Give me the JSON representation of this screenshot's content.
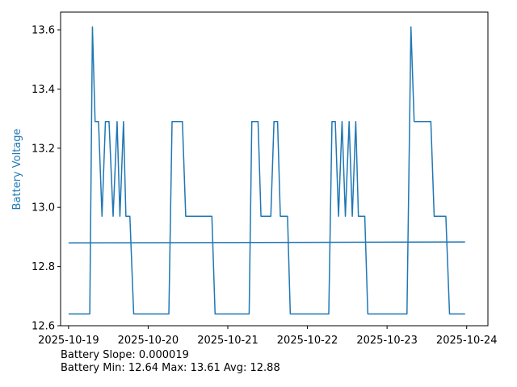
{
  "chart_data": {
    "type": "line",
    "ylabel": "Battery Voltage",
    "ylim": [
      12.6,
      13.66
    ],
    "yticks": [
      12.6,
      12.8,
      13.0,
      13.2,
      13.4,
      13.6
    ],
    "ytick_labels": [
      "12.6",
      "12.8",
      "13.0",
      "13.2",
      "13.4",
      "13.6"
    ],
    "xlim": [
      "2025-10-18 21:36",
      "2025-10-24 06:24"
    ],
    "xticks": [
      "2025-10-19 00:00",
      "2025-10-20 00:00",
      "2025-10-21 00:00",
      "2025-10-22 00:00",
      "2025-10-23 00:00",
      "2025-10-24 00:00"
    ],
    "xtick_labels": [
      "2025-10-19",
      "2025-10-20",
      "2025-10-21",
      "2025-10-22",
      "2025-10-23",
      "2025-10-24"
    ],
    "grid": false,
    "series": [
      {
        "color": "#1f77b4",
        "points": [
          [
            "2025-10-19 00:00",
            12.64
          ],
          [
            "2025-10-19 06:24",
            12.64
          ],
          [
            "2025-10-19 07:12",
            13.61
          ],
          [
            "2025-10-19 08:00",
            13.29
          ],
          [
            "2025-10-19 09:02",
            13.29
          ],
          [
            "2025-10-19 10:05",
            12.97
          ],
          [
            "2025-10-19 11:07",
            13.29
          ],
          [
            "2025-10-19 12:12",
            13.29
          ],
          [
            "2025-10-19 13:26",
            12.97
          ],
          [
            "2025-10-19 14:38",
            13.29
          ],
          [
            "2025-10-19 15:29",
            12.97
          ],
          [
            "2025-10-19 16:34",
            13.29
          ],
          [
            "2025-10-19 17:17",
            12.97
          ],
          [
            "2025-10-19 18:29",
            12.97
          ],
          [
            "2025-10-19 19:38",
            12.64
          ],
          [
            "2025-10-20 06:14",
            12.64
          ],
          [
            "2025-10-20 07:12",
            13.29
          ],
          [
            "2025-10-20 10:19",
            13.29
          ],
          [
            "2025-10-20 11:19",
            12.97
          ],
          [
            "2025-10-20 19:12",
            12.97
          ],
          [
            "2025-10-20 20:10",
            12.64
          ],
          [
            "2025-10-21 06:26",
            12.64
          ],
          [
            "2025-10-21 07:14",
            13.29
          ],
          [
            "2025-10-21 09:07",
            13.29
          ],
          [
            "2025-10-21 10:00",
            12.97
          ],
          [
            "2025-10-21 12:58",
            12.97
          ],
          [
            "2025-10-21 13:55",
            13.29
          ],
          [
            "2025-10-21 15:00",
            13.29
          ],
          [
            "2025-10-21 15:50",
            12.97
          ],
          [
            "2025-10-21 18:00",
            12.97
          ],
          [
            "2025-10-21 18:50",
            12.64
          ],
          [
            "2025-10-22 06:26",
            12.64
          ],
          [
            "2025-10-22 07:24",
            13.29
          ],
          [
            "2025-10-22 08:24",
            13.29
          ],
          [
            "2025-10-22 09:22",
            12.97
          ],
          [
            "2025-10-22 10:26",
            13.29
          ],
          [
            "2025-10-22 11:26",
            12.97
          ],
          [
            "2025-10-22 12:34",
            13.29
          ],
          [
            "2025-10-22 13:31",
            12.97
          ],
          [
            "2025-10-22 14:34",
            13.29
          ],
          [
            "2025-10-22 15:22",
            12.97
          ],
          [
            "2025-10-22 17:17",
            12.97
          ],
          [
            "2025-10-22 18:12",
            12.64
          ],
          [
            "2025-10-23 06:00",
            12.64
          ],
          [
            "2025-10-23 07:12",
            13.61
          ],
          [
            "2025-10-23 08:10",
            13.29
          ],
          [
            "2025-10-23 13:12",
            13.29
          ],
          [
            "2025-10-23 14:12",
            12.97
          ],
          [
            "2025-10-23 17:43",
            12.97
          ],
          [
            "2025-10-23 18:50",
            12.64
          ],
          [
            "2025-10-23 23:31",
            12.64
          ]
        ]
      },
      {
        "color": "#1f77b4",
        "points": [
          [
            "2025-10-19 00:00",
            12.88
          ],
          [
            "2025-10-23 23:31",
            12.883
          ]
        ]
      }
    ]
  },
  "stats": {
    "slope_text": "Battery Slope: 0.000019",
    "minmax_text": "Battery Min: 12.64 Max: 13.61 Avg: 12.88"
  }
}
